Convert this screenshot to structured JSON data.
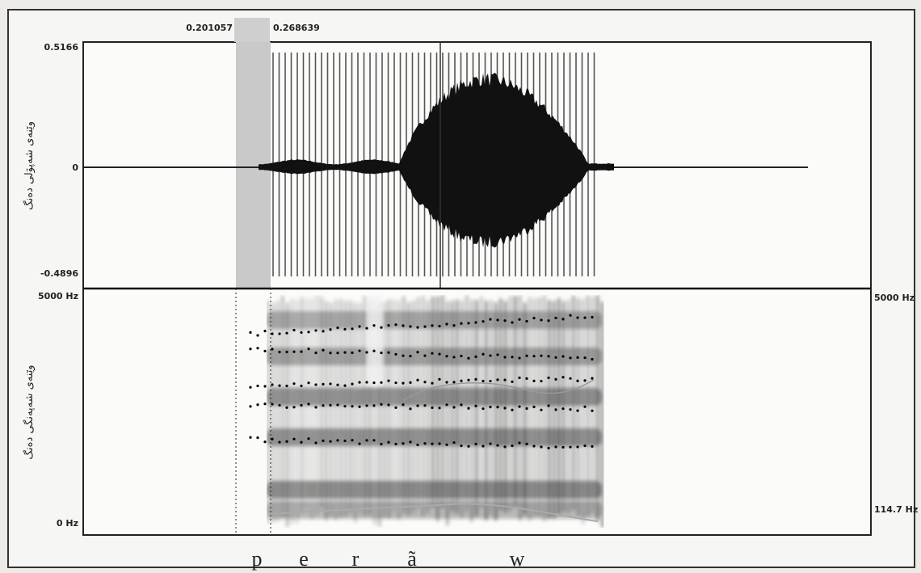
{
  "selection": {
    "start": "0.201057",
    "end": "0.268639"
  },
  "waveform": {
    "y_max": "0.5166",
    "y_zero": "0",
    "y_min": "-0.4896",
    "axis_label": "وێنەی شەپۆلی دەنگ"
  },
  "spectrogram": {
    "y_max": "5000 Hz",
    "y_min": "0 Hz",
    "right_max": "5000 Hz",
    "right_pitch": "114.7 Hz",
    "axis_label": "وێنەی شەپەنگی دەنگ"
  },
  "segments": [
    "p",
    "e",
    "r",
    "ã",
    "w"
  ]
}
